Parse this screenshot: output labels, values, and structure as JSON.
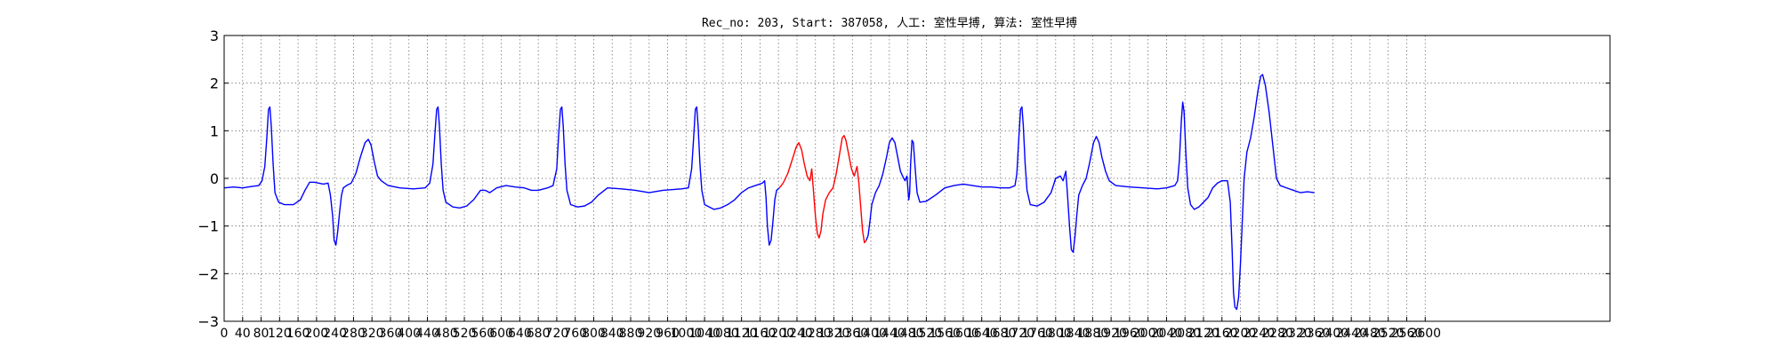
{
  "chart_data": {
    "type": "line",
    "title": "Rec_no: 203, Start: 387058, 人工: 室性早搏, 算法: 室性早搏",
    "xlabel": "",
    "ylabel": "",
    "xlim": [
      0,
      3000
    ],
    "ylim": [
      -3,
      3
    ],
    "x_ticks": [
      0,
      40,
      80,
      120,
      160,
      200,
      240,
      280,
      320,
      360,
      400,
      440,
      480,
      520,
      560,
      600,
      640,
      680,
      720,
      760,
      800,
      840,
      880,
      920,
      960,
      1000,
      1040,
      1080,
      1120,
      1160,
      1200,
      1240,
      1280,
      1320,
      1360,
      1400,
      1440,
      1480,
      1520,
      1560,
      1600,
      1640,
      1680,
      1720,
      1760,
      1800,
      1840,
      1880,
      1920,
      1960,
      2000,
      2040,
      2080,
      2120,
      2160,
      2200,
      2240,
      2280,
      2320,
      2360,
      2400,
      2440,
      2480,
      2520,
      2560,
      2600
    ],
    "x_tick_labels": [
      "0",
      "40",
      "80",
      "120",
      "160",
      "200",
      "240",
      "280",
      "320",
      "360",
      "400",
      "440",
      "480",
      "520",
      "560",
      "600",
      "640",
      "680",
      "720",
      "760",
      "800",
      "840",
      "880",
      "920",
      "960",
      "1000",
      "1040",
      "1080",
      "1120",
      "1160",
      "1200",
      "1240",
      "1280",
      "1320",
      "1360",
      "1400",
      "1440",
      "1480",
      "1520",
      "1560",
      "1600",
      "1640",
      "1680",
      "1720",
      "1760",
      "1800",
      "1840",
      "1880",
      "1920",
      "1960",
      "2000",
      "2040",
      "2080",
      "2120",
      "2160",
      "2200",
      "2240",
      "2280",
      "2320",
      "2360",
      "2400",
      "2440",
      "2480",
      "2520",
      "2560",
      "2600"
    ],
    "y_ticks": [
      -3,
      -2,
      -1,
      0,
      1,
      2,
      3
    ],
    "y_tick_labels": [
      "−3",
      "−2",
      "−1",
      "0",
      "1",
      "2",
      "3"
    ],
    "grid": true,
    "colors": {
      "normal": "#0000ff",
      "highlight": "#ff0000",
      "grid": "#555555"
    },
    "series": [
      {
        "color": "blue",
        "points": [
          [
            0,
            -0.2
          ],
          [
            20,
            -0.18
          ],
          [
            40,
            -0.2
          ],
          [
            60,
            -0.17
          ],
          [
            75,
            -0.15
          ],
          [
            82,
            -0.05
          ],
          [
            88,
            0.25
          ],
          [
            92,
            0.8
          ],
          [
            96,
            1.45
          ],
          [
            99,
            1.5
          ],
          [
            102,
            1.1
          ],
          [
            106,
            0.3
          ],
          [
            110,
            -0.3
          ],
          [
            118,
            -0.5
          ],
          [
            130,
            -0.55
          ],
          [
            150,
            -0.55
          ],
          [
            165,
            -0.45
          ],
          [
            175,
            -0.25
          ],
          [
            185,
            -0.08
          ],
          [
            195,
            -0.08
          ],
          [
            215,
            -0.12
          ],
          [
            225,
            -0.1
          ],
          [
            230,
            -0.35
          ],
          [
            235,
            -0.8
          ],
          [
            238,
            -1.3
          ],
          [
            242,
            -1.4
          ],
          [
            246,
            -1.1
          ],
          [
            250,
            -0.7
          ],
          [
            254,
            -0.35
          ],
          [
            258,
            -0.2
          ],
          [
            265,
            -0.15
          ],
          [
            275,
            -0.1
          ],
          [
            285,
            0.1
          ],
          [
            295,
            0.45
          ],
          [
            305,
            0.75
          ],
          [
            312,
            0.82
          ],
          [
            318,
            0.7
          ],
          [
            325,
            0.35
          ],
          [
            332,
            0.05
          ],
          [
            340,
            -0.05
          ],
          [
            355,
            -0.15
          ],
          [
            380,
            -0.2
          ],
          [
            410,
            -0.22
          ],
          [
            435,
            -0.2
          ],
          [
            445,
            -0.1
          ],
          [
            452,
            0.3
          ],
          [
            456,
            0.9
          ],
          [
            460,
            1.45
          ],
          [
            463,
            1.5
          ],
          [
            466,
            1.1
          ],
          [
            470,
            0.3
          ],
          [
            474,
            -0.25
          ],
          [
            480,
            -0.5
          ],
          [
            495,
            -0.6
          ],
          [
            510,
            -0.62
          ],
          [
            525,
            -0.58
          ],
          [
            540,
            -0.45
          ],
          [
            555,
            -0.25
          ],
          [
            565,
            -0.25
          ],
          [
            575,
            -0.3
          ],
          [
            590,
            -0.2
          ],
          [
            610,
            -0.15
          ],
          [
            630,
            -0.18
          ],
          [
            650,
            -0.2
          ],
          [
            665,
            -0.25
          ],
          [
            680,
            -0.25
          ],
          [
            700,
            -0.2
          ],
          [
            712,
            -0.15
          ],
          [
            720,
            0.2
          ],
          [
            724,
            0.9
          ],
          [
            728,
            1.45
          ],
          [
            731,
            1.5
          ],
          [
            734,
            1.1
          ],
          [
            738,
            0.3
          ],
          [
            742,
            -0.25
          ],
          [
            750,
            -0.55
          ],
          [
            765,
            -0.6
          ],
          [
            780,
            -0.58
          ],
          [
            795,
            -0.5
          ],
          [
            810,
            -0.35
          ],
          [
            830,
            -0.2
          ],
          [
            860,
            -0.22
          ],
          [
            890,
            -0.25
          ],
          [
            920,
            -0.3
          ],
          [
            950,
            -0.25
          ],
          [
            990,
            -0.22
          ],
          [
            1005,
            -0.2
          ],
          [
            1012,
            0.2
          ],
          [
            1016,
            0.8
          ],
          [
            1020,
            1.45
          ],
          [
            1023,
            1.5
          ],
          [
            1026,
            1.1
          ],
          [
            1030,
            0.3
          ],
          [
            1034,
            -0.25
          ],
          [
            1040,
            -0.55
          ],
          [
            1060,
            -0.65
          ],
          [
            1075,
            -0.62
          ],
          [
            1090,
            -0.55
          ],
          [
            1105,
            -0.45
          ],
          [
            1120,
            -0.3
          ],
          [
            1135,
            -0.2
          ],
          [
            1150,
            -0.15
          ],
          [
            1165,
            -0.1
          ],
          [
            1170,
            -0.05
          ],
          [
            1173,
            -0.4
          ],
          [
            1176,
            -1.0
          ],
          [
            1180,
            -1.4
          ],
          [
            1184,
            -1.3
          ],
          [
            1188,
            -0.9
          ],
          [
            1192,
            -0.45
          ],
          [
            1196,
            -0.25
          ],
          [
            1202,
            -0.2
          ]
        ]
      },
      {
        "color": "red",
        "points": [
          [
            1202,
            -0.2
          ],
          [
            1210,
            -0.1
          ],
          [
            1220,
            0.1
          ],
          [
            1230,
            0.4
          ],
          [
            1238,
            0.65
          ],
          [
            1244,
            0.75
          ],
          [
            1250,
            0.6
          ],
          [
            1256,
            0.3
          ],
          [
            1262,
            0.05
          ],
          [
            1268,
            -0.05
          ],
          [
            1272,
            0.2
          ],
          [
            1276,
            -0.3
          ],
          [
            1280,
            -0.8
          ],
          [
            1284,
            -1.15
          ],
          [
            1288,
            -1.25
          ],
          [
            1292,
            -1.1
          ],
          [
            1296,
            -0.75
          ],
          [
            1302,
            -0.45
          ],
          [
            1310,
            -0.3
          ],
          [
            1318,
            -0.2
          ],
          [
            1325,
            0.1
          ],
          [
            1332,
            0.5
          ],
          [
            1338,
            0.85
          ],
          [
            1342,
            0.9
          ],
          [
            1346,
            0.8
          ],
          [
            1352,
            0.5
          ],
          [
            1358,
            0.2
          ],
          [
            1364,
            0.05
          ],
          [
            1370,
            0.25
          ],
          [
            1374,
            -0.1
          ],
          [
            1378,
            -0.6
          ],
          [
            1382,
            -1.1
          ],
          [
            1386,
            -1.35
          ],
          [
            1390,
            -1.3
          ]
        ]
      },
      {
        "color": "blue",
        "points": [
          [
            1390,
            -1.3
          ],
          [
            1394,
            -1.2
          ],
          [
            1398,
            -0.9
          ],
          [
            1402,
            -0.55
          ],
          [
            1410,
            -0.3
          ],
          [
            1418,
            -0.15
          ],
          [
            1426,
            0.1
          ],
          [
            1434,
            0.45
          ],
          [
            1440,
            0.75
          ],
          [
            1446,
            0.85
          ],
          [
            1452,
            0.75
          ],
          [
            1458,
            0.45
          ],
          [
            1464,
            0.15
          ],
          [
            1470,
            0.02
          ],
          [
            1474,
            -0.05
          ],
          [
            1478,
            0.05
          ],
          [
            1482,
            -0.45
          ],
          [
            1484,
            -0.3
          ],
          [
            1486,
            0.3
          ],
          [
            1489,
            0.8
          ],
          [
            1492,
            0.75
          ],
          [
            1496,
            0.2
          ],
          [
            1500,
            -0.3
          ],
          [
            1506,
            -0.5
          ],
          [
            1520,
            -0.48
          ],
          [
            1540,
            -0.35
          ],
          [
            1560,
            -0.2
          ],
          [
            1580,
            -0.15
          ],
          [
            1600,
            -0.12
          ],
          [
            1620,
            -0.15
          ],
          [
            1640,
            -0.18
          ],
          [
            1660,
            -0.18
          ],
          [
            1680,
            -0.2
          ],
          [
            1700,
            -0.2
          ],
          [
            1712,
            -0.15
          ],
          [
            1716,
            0.1
          ],
          [
            1720,
            0.8
          ],
          [
            1724,
            1.45
          ],
          [
            1727,
            1.5
          ],
          [
            1730,
            1.1
          ],
          [
            1734,
            0.3
          ],
          [
            1738,
            -0.25
          ],
          [
            1745,
            -0.55
          ],
          [
            1760,
            -0.58
          ],
          [
            1775,
            -0.5
          ],
          [
            1790,
            -0.3
          ],
          [
            1800,
            0.0
          ],
          [
            1810,
            0.05
          ],
          [
            1816,
            -0.05
          ],
          [
            1822,
            0.15
          ],
          [
            1826,
            -0.4
          ],
          [
            1830,
            -1.0
          ],
          [
            1834,
            -1.5
          ],
          [
            1838,
            -1.55
          ],
          [
            1842,
            -1.2
          ],
          [
            1846,
            -0.75
          ],
          [
            1850,
            -0.35
          ],
          [
            1858,
            -0.15
          ],
          [
            1866,
            0.0
          ],
          [
            1874,
            0.35
          ],
          [
            1882,
            0.75
          ],
          [
            1888,
            0.88
          ],
          [
            1894,
            0.75
          ],
          [
            1900,
            0.45
          ],
          [
            1908,
            0.15
          ],
          [
            1916,
            -0.05
          ],
          [
            1930,
            -0.15
          ],
          [
            1960,
            -0.18
          ],
          [
            1990,
            -0.2
          ],
          [
            2020,
            -0.22
          ],
          [
            2040,
            -0.2
          ],
          [
            2058,
            -0.15
          ],
          [
            2064,
            -0.05
          ],
          [
            2068,
            0.4
          ],
          [
            2072,
            1.2
          ],
          [
            2075,
            1.6
          ],
          [
            2078,
            1.4
          ],
          [
            2082,
            0.5
          ],
          [
            2086,
            -0.2
          ],
          [
            2092,
            -0.55
          ],
          [
            2100,
            -0.65
          ],
          [
            2110,
            -0.6
          ],
          [
            2120,
            -0.5
          ],
          [
            2130,
            -0.4
          ],
          [
            2140,
            -0.2
          ],
          [
            2150,
            -0.1
          ],
          [
            2160,
            -0.05
          ],
          [
            2172,
            -0.05
          ],
          [
            2178,
            -0.5
          ],
          [
            2182,
            -1.5
          ],
          [
            2185,
            -2.4
          ],
          [
            2188,
            -2.7
          ],
          [
            2192,
            -2.75
          ],
          [
            2196,
            -2.5
          ],
          [
            2200,
            -1.8
          ],
          [
            2204,
            -0.9
          ],
          [
            2208,
            0.0
          ],
          [
            2214,
            0.55
          ],
          [
            2222,
            0.85
          ],
          [
            2230,
            1.3
          ],
          [
            2238,
            1.85
          ],
          [
            2244,
            2.15
          ],
          [
            2248,
            2.18
          ],
          [
            2254,
            1.95
          ],
          [
            2262,
            1.4
          ],
          [
            2270,
            0.7
          ],
          [
            2278,
            0.0
          ],
          [
            2286,
            -0.15
          ],
          [
            2300,
            -0.2
          ],
          [
            2315,
            -0.25
          ],
          [
            2330,
            -0.3
          ],
          [
            2345,
            -0.28
          ],
          [
            2360,
            -0.3
          ]
        ]
      }
    ]
  }
}
